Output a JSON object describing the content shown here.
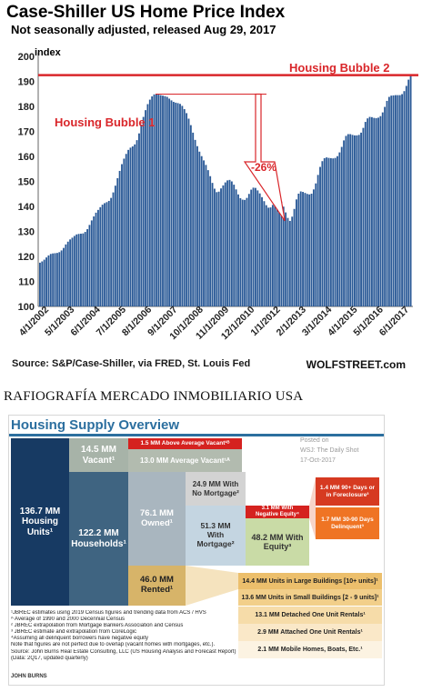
{
  "chart_data": [
    {
      "type": "bar",
      "title": "Case-Shiller US Home Price Index",
      "subtitle": "Not seasonally adjusted, released Aug 29, 2017",
      "ylabel": "index",
      "ylim": [
        100,
        200
      ],
      "yticks": [
        "100",
        "110",
        "120",
        "130",
        "140",
        "150",
        "160",
        "170",
        "180",
        "190",
        "200"
      ],
      "x_ticks": [
        "4/1/2002",
        "5/1/2003",
        "6/1/2004",
        "7/1/2005",
        "8/1/2006",
        "9/1/2007",
        "10/1/2008",
        "11/1/2009",
        "12/1/2010",
        "1/1/2012",
        "2/1/2013",
        "3/1/2014",
        "4/1/2015",
        "5/1/2016",
        "6/1/2017"
      ],
      "series": [
        {
          "values": [
            117.5,
            118.0,
            118.7,
            119.6,
            120.4,
            121.0,
            121.2,
            121.3,
            121.4,
            121.7,
            122.4,
            123.4,
            124.8,
            125.9,
            126.8,
            127.5,
            128.2,
            128.8,
            129.0,
            129.1,
            129.2,
            129.8,
            130.9,
            132.6,
            134.4,
            136.0,
            137.5,
            138.6,
            139.7,
            140.7,
            141.3,
            141.7,
            142.2,
            143.4,
            145.6,
            148.3,
            151.3,
            154.2,
            156.9,
            159.1,
            161.0,
            162.6,
            163.5,
            164.0,
            164.8,
            166.5,
            169.2,
            172.7,
            175.8,
            178.5,
            180.9,
            182.7,
            184.0,
            184.8,
            184.9,
            184.7,
            184.5,
            184.3,
            184.1,
            183.8,
            183.1,
            182.4,
            181.8,
            181.5,
            181.3,
            181.0,
            180.2,
            178.9,
            177.3,
            175.1,
            172.5,
            169.5,
            166.6,
            164.1,
            161.9,
            160.1,
            158.4,
            156.6,
            154.5,
            152.1,
            149.4,
            147.1,
            145.7,
            145.9,
            147.2,
            148.4,
            149.6,
            150.4,
            150.6,
            150.0,
            148.7,
            146.8,
            144.8,
            143.3,
            142.7,
            142.6,
            143.4,
            145.0,
            146.7,
            147.5,
            147.4,
            146.4,
            145.2,
            143.7,
            142.1,
            140.5,
            139.5,
            139.6,
            140.6,
            142.2,
            143.2,
            143.1,
            141.9,
            139.9,
            137.6,
            135.4,
            134.2,
            135.9,
            139.0,
            142.8,
            145.1,
            146.0,
            145.8,
            145.4,
            145.0,
            144.8,
            145.1,
            146.8,
            149.2,
            152.6,
            155.8,
            158.1,
            159.3,
            159.6,
            159.4,
            159.3,
            159.2,
            159.4,
            160.1,
            161.6,
            163.8,
            166.4,
            168.2,
            168.9,
            168.9,
            168.6,
            168.4,
            168.4,
            168.6,
            169.5,
            171.4,
            173.8,
            175.2,
            175.8,
            175.7,
            175.4,
            175.3,
            175.5,
            176.1,
            177.6,
            179.8,
            182.2,
            183.8,
            184.3,
            184.4,
            184.5,
            184.5,
            184.5,
            184.9,
            186.1,
            188.2,
            190.7,
            192.7
          ]
        }
      ],
      "annotations": [
        "Housing Bubble 1",
        "Housing Bubble 2",
        "-26%"
      ],
      "reference_line": 192.5,
      "source": "Source: S&P/Case-Shiller, via FRED,  St. Louis Fed",
      "watermark": "WOLFSTREET.com",
      "colors": {
        "bars": "#2b5a97",
        "bubble": "#d9262a"
      }
    }
  ],
  "caption": "RAFIOGRAFÍA MERCADO INMOBILIARIO USA",
  "overview": {
    "title": "Housing Supply Overview",
    "posted": [
      "Posted on",
      "WSJ: The Daily Shot",
      "17-Oct-2017"
    ],
    "housing_units": [
      "136.7 MM",
      "Housing",
      "Units¹"
    ],
    "vacant": [
      "14.5 MM",
      "Vacant¹"
    ],
    "households": [
      "122.2 MM",
      "Households¹"
    ],
    "above_avg_vacant": "1.5 MM Above Average Vacant¹ᴮ",
    "avg_vacant": "13.0 MM Average Vacant¹ᴬ",
    "owned": [
      "76.1 MM",
      "Owned¹"
    ],
    "no_mortgage": [
      "24.9 MM With",
      "No Mortgage²"
    ],
    "with_mortgage": [
      "51.3 MM",
      "With",
      "Mortgage²"
    ],
    "negative_equity": [
      "3.1 MM With",
      "Negative Equity⁴"
    ],
    "with_equity": [
      "48.2 MM With",
      "Equity³"
    ],
    "foreclosure": [
      "1.4 MM 90+ Days or",
      "in Foreclosure³"
    ],
    "delinquent": [
      "1.7 MM 30-90 Days",
      "Delinquent³"
    ],
    "rented": [
      "46.0 MM",
      "Rented¹"
    ],
    "rental_rows": [
      "14.4 MM Units in Large Buildings [10+ units]¹",
      "13.6 MM Units in Small Buildings [2 - 9 units]¹",
      "13.1 MM Detached One Unit Rentals¹",
      "2.9 MM Attached One Unit Rentals¹",
      "2.1 MM Mobile Homes, Boats, Etc.¹"
    ],
    "notes": [
      "¹JBREC estimates using 2019 Census figures and trending data from ACS / HVS",
      "ᴬ Average of 1990 and 2000 Decennial Census",
      "² JBREC extrapolation from Mortgage Bankers Association and Census",
      "³ JBREC estimate and extrapolation from CoreLogic",
      "  ⁴Assuming all delinquent borrowers have negative equity",
      "Note that figures are not perfect due to overlap (vacant homes with mortgages, etc.).",
      "Source: John Burns Real Estate Consulting, LLC (US Housing Analysis and Forecast Report)",
      "  (Data: 2Q17, updated quarterly)"
    ],
    "logo_text": "JOHN BURNS"
  }
}
